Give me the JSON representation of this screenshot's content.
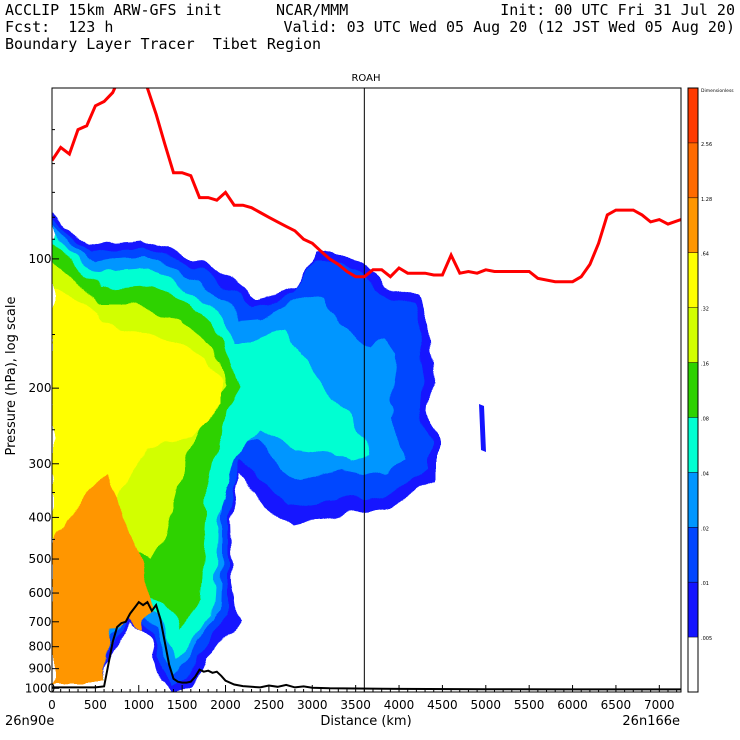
{
  "header": {
    "line1_left": "ACCLIP 15km ARW-GFS init",
    "line1_mid": "NCAR/MMM",
    "line1_right": "Init: 00 UTC Fri 31 Jul 20",
    "line2_left": "Fcst:  123 h",
    "line2_right": "Valid: 03 UTC Wed 05 Aug 20 (12 JST Wed 05 Aug 20)",
    "line3_left": "Boundary Layer Tracer  Tibet Region"
  },
  "chart_data": {
    "type": "heatmap",
    "title": "ROAH",
    "xlabel": "Distance (km)",
    "ylabel": "Pressure (hPa), log scale",
    "x_ticks": [
      0,
      500,
      1000,
      1500,
      2000,
      2500,
      3000,
      3500,
      4000,
      4500,
      5000,
      5500,
      6000,
      6500,
      7000
    ],
    "y_ticks": [
      100,
      200,
      300,
      400,
      500,
      600,
      700,
      800,
      900,
      1000
    ],
    "xlim": [
      0,
      7250
    ],
    "ylim": [
      1020,
      40
    ],
    "y_scale": "log",
    "endpoints": {
      "left": "26n90e",
      "right": "26n166e"
    },
    "vertical_line_x": 3600,
    "colorbar": {
      "levels": [
        "Dimensionless",
        "2.56",
        "1.28",
        ".64",
        ".32",
        ".16",
        ".08",
        ".04",
        ".02",
        ".01",
        ".005"
      ],
      "colors": [
        "#ff3a00",
        "#ff6a00",
        "#ff9600",
        "#ffff00",
        "#d2ff00",
        "#2ed200",
        "#00ffd2",
        "#0096ff",
        "#0046ff",
        "#1414ff",
        "#ffffff"
      ]
    },
    "tracer_fill_levels": [
      {
        "level": ".01",
        "color": "#1414ff"
      },
      {
        "level": ".02",
        "color": "#0046ff"
      },
      {
        "level": ".04",
        "color": "#0096ff"
      },
      {
        "level": ".08",
        "color": "#00ffd2"
      },
      {
        "level": ".16",
        "color": "#2ed200"
      },
      {
        "level": ".32",
        "color": "#d2ff00"
      },
      {
        "level": ".64",
        "color": "#ffff00"
      },
      {
        "level": "1.28",
        "color": "#ff9600"
      }
    ],
    "tropopause_line": {
      "color": "#ff0000",
      "points": [
        [
          0,
          59
        ],
        [
          100,
          55
        ],
        [
          200,
          57
        ],
        [
          300,
          50
        ],
        [
          400,
          49
        ],
        [
          500,
          44
        ],
        [
          600,
          43
        ],
        [
          700,
          41
        ],
        [
          800,
          37
        ],
        [
          900,
          34
        ],
        [
          1000,
          34
        ],
        [
          1100,
          40
        ],
        [
          1200,
          46
        ],
        [
          1300,
          54
        ],
        [
          1400,
          63
        ],
        [
          1500,
          63
        ],
        [
          1600,
          64
        ],
        [
          1700,
          72
        ],
        [
          1800,
          72
        ],
        [
          1900,
          73
        ],
        [
          2000,
          70
        ],
        [
          2100,
          75
        ],
        [
          2200,
          75
        ],
        [
          2300,
          76
        ],
        [
          2400,
          78
        ],
        [
          2500,
          80
        ],
        [
          2600,
          82
        ],
        [
          2700,
          84
        ],
        [
          2800,
          86
        ],
        [
          2900,
          90
        ],
        [
          3000,
          92
        ],
        [
          3100,
          96
        ],
        [
          3200,
          100
        ],
        [
          3300,
          103
        ],
        [
          3400,
          107
        ],
        [
          3500,
          110
        ],
        [
          3600,
          110
        ],
        [
          3700,
          106
        ],
        [
          3800,
          106
        ],
        [
          3900,
          110
        ],
        [
          4000,
          105
        ],
        [
          4100,
          108
        ],
        [
          4200,
          108
        ],
        [
          4300,
          108
        ],
        [
          4400,
          109
        ],
        [
          4500,
          109
        ],
        [
          4600,
          98
        ],
        [
          4700,
          108
        ],
        [
          4800,
          107
        ],
        [
          4900,
          108
        ],
        [
          5000,
          106
        ],
        [
          5100,
          107
        ],
        [
          5200,
          107
        ],
        [
          5300,
          107
        ],
        [
          5400,
          107
        ],
        [
          5500,
          107
        ],
        [
          5600,
          111
        ],
        [
          5800,
          113
        ],
        [
          6000,
          113
        ],
        [
          6100,
          110
        ],
        [
          6200,
          103
        ],
        [
          6300,
          92
        ],
        [
          6400,
          79
        ],
        [
          6500,
          77
        ],
        [
          6600,
          77
        ],
        [
          6700,
          77
        ],
        [
          6800,
          79
        ],
        [
          6900,
          82
        ],
        [
          7000,
          81
        ],
        [
          7100,
          83
        ],
        [
          7250,
          81
        ]
      ]
    },
    "terrain_line": {
      "color": "#000000",
      "points": [
        [
          0,
          995
        ],
        [
          500,
          995
        ],
        [
          600,
          990
        ],
        [
          700,
          780
        ],
        [
          750,
          720
        ],
        [
          800,
          705
        ],
        [
          850,
          700
        ],
        [
          900,
          670
        ],
        [
          950,
          650
        ],
        [
          1000,
          630
        ],
        [
          1050,
          640
        ],
        [
          1100,
          630
        ],
        [
          1150,
          660
        ],
        [
          1200,
          640
        ],
        [
          1250,
          690
        ],
        [
          1300,
          780
        ],
        [
          1350,
          880
        ],
        [
          1400,
          950
        ],
        [
          1450,
          965
        ],
        [
          1500,
          970
        ],
        [
          1550,
          970
        ],
        [
          1600,
          965
        ],
        [
          1650,
          940
        ],
        [
          1700,
          905
        ],
        [
          1750,
          915
        ],
        [
          1800,
          910
        ],
        [
          1850,
          920
        ],
        [
          1900,
          915
        ],
        [
          1950,
          935
        ],
        [
          2000,
          960
        ],
        [
          2100,
          980
        ],
        [
          2200,
          988
        ],
        [
          2300,
          992
        ],
        [
          2400,
          995
        ],
        [
          2500,
          985
        ],
        [
          2600,
          992
        ],
        [
          2700,
          982
        ],
        [
          2800,
          995
        ],
        [
          2900,
          990
        ],
        [
          3000,
          997
        ],
        [
          3200,
          1000
        ],
        [
          4000,
          1003
        ],
        [
          5000,
          1005
        ],
        [
          6000,
          1006
        ],
        [
          7250,
          1006
        ]
      ]
    }
  }
}
